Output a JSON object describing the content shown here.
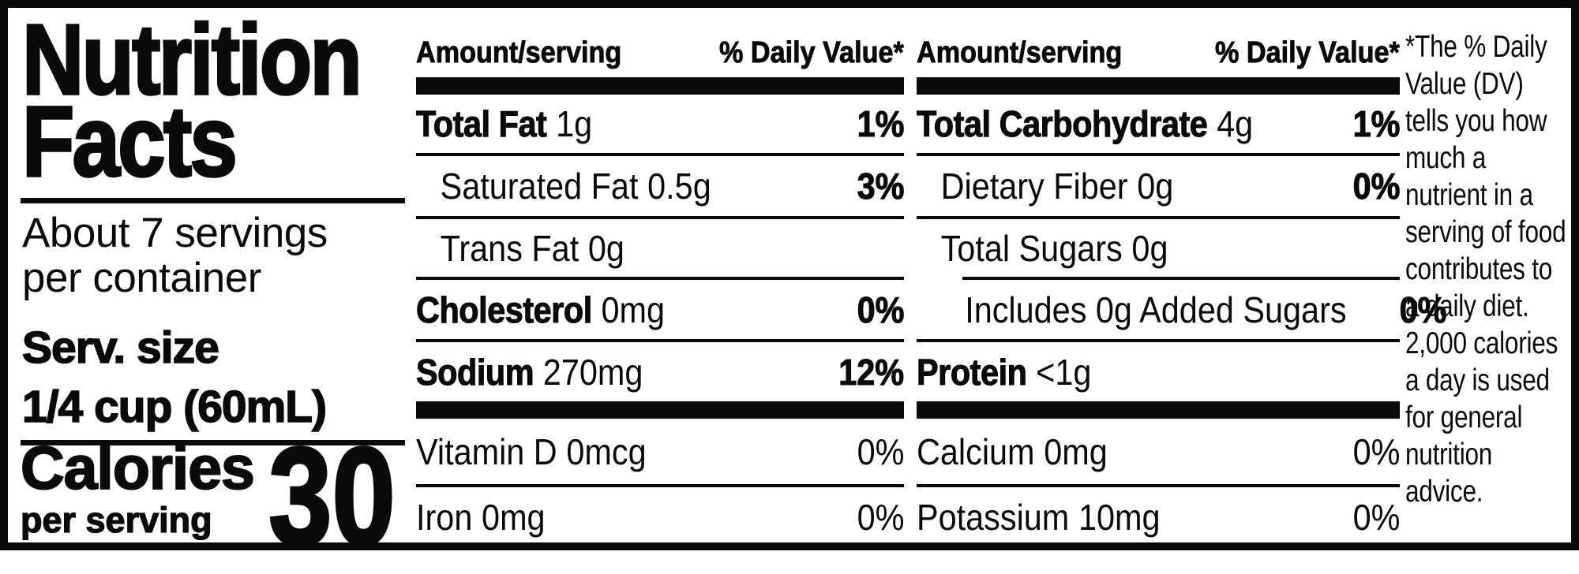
{
  "panel": {
    "title_line1": "Nutrition",
    "title_line2": "Facts",
    "servings_line1": "About 7 servings",
    "servings_line2": "per container",
    "serving_size_label": "Serv. size",
    "serving_size_value": "1/4 cup (60mL)",
    "calories_label": "Calories",
    "calories_sublabel": "per serving",
    "calories_value": "30"
  },
  "table": {
    "header_amount": "Amount/serving",
    "header_dv": "% Daily Value*",
    "col1": {
      "rows": [
        {
          "name": "Total Fat",
          "amount": "1g",
          "dv": "1%"
        },
        {
          "name": "Saturated Fat",
          "amount": "0.5g",
          "dv": "3%"
        },
        {
          "name": "Trans Fat",
          "amount": "0g",
          "dv": ""
        },
        {
          "name": "Cholesterol",
          "amount": "0mg",
          "dv": "0%"
        },
        {
          "name": "Sodium",
          "amount": "270mg",
          "dv": "12%"
        }
      ],
      "micros": [
        {
          "name": "Vitamin D",
          "amount": "0mcg",
          "dv": "0%"
        },
        {
          "name": "Iron",
          "amount": "0mg",
          "dv": "0%"
        }
      ]
    },
    "col2": {
      "rows": [
        {
          "name": "Total Carbohydrate",
          "amount": "4g",
          "dv": "1%"
        },
        {
          "name": "Dietary Fiber",
          "amount": "0g",
          "dv": "0%"
        },
        {
          "name": "Total Sugars",
          "amount": "0g",
          "dv": ""
        },
        {
          "name": "Includes 0g Added Sugars",
          "amount": "",
          "dv": "0%"
        },
        {
          "name": "Protein",
          "amount": "<1g",
          "dv": ""
        }
      ],
      "micros": [
        {
          "name": "Calcium",
          "amount": "0mg",
          "dv": "0%"
        },
        {
          "name": "Potassium",
          "amount": "10mg",
          "dv": "0%"
        }
      ]
    }
  },
  "footnote_text": "*The % Daily Value (DV) tells you how much a nutrient in a serving of food contributes to a daily diet. 2,000 calories a day is used for general nutrition advice."
}
